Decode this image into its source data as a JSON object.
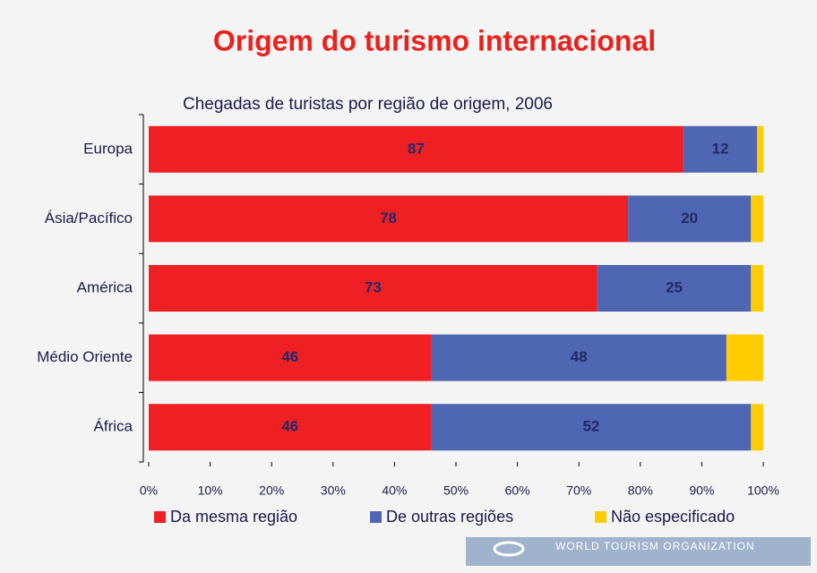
{
  "chart_data": {
    "type": "stacked_bar_horizontal",
    "title": "Origem do turismo internacional",
    "subtitle": "Chegadas de turistas por região de origem, 2006",
    "categories": [
      "Europa",
      "Ásia/Pacífico",
      "América",
      "Médio Oriente",
      "África"
    ],
    "series": [
      {
        "name": "Da mesma região",
        "color": "#ee2024",
        "values": [
          87,
          78,
          73,
          46,
          46
        ],
        "show_labels": true
      },
      {
        "name": "De outras regiões",
        "color": "#4f67b2",
        "values": [
          12,
          20,
          25,
          48,
          52
        ],
        "show_labels": true
      },
      {
        "name": "Não especificado",
        "color": "#ffcc00",
        "values": [
          1,
          2,
          2,
          6,
          2
        ],
        "show_labels": false
      }
    ],
    "xlim": [
      0,
      100
    ],
    "xticks": [
      {
        "value": 0,
        "label": "0%"
      },
      {
        "value": 10,
        "label": "10%"
      },
      {
        "value": 20,
        "label": "20%"
      },
      {
        "value": 30,
        "label": "30%"
      },
      {
        "value": 40,
        "label": "40%"
      },
      {
        "value": 50,
        "label": "50%"
      },
      {
        "value": 60,
        "label": "60%"
      },
      {
        "value": 70,
        "label": "70%"
      },
      {
        "value": 80,
        "label": "80%"
      },
      {
        "value": 90,
        "label": "90%"
      },
      {
        "value": 100,
        "label": "100%"
      }
    ],
    "legend": "bottom",
    "footer": "WORLD TOURISM ORGANIZATION"
  }
}
